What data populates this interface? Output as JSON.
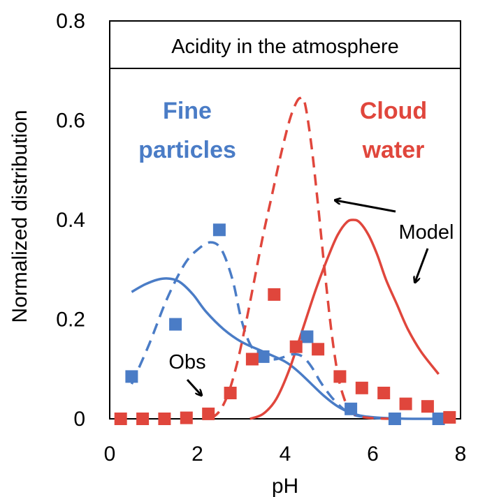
{
  "chart_data": {
    "type": "line",
    "title": "Acidity in the atmosphere",
    "xlabel": "pH",
    "ylabel": "Normalized distribution",
    "xlim": [
      0,
      8
    ],
    "ylim": [
      0,
      0.8
    ],
    "xticks": [
      0,
      2,
      4,
      6,
      8
    ],
    "yticks": [
      0,
      0.2,
      0.4,
      0.6,
      0.8
    ],
    "x_tick_labels": [
      "0",
      "2",
      "4",
      "6",
      "8"
    ],
    "y_tick_labels": [
      "0",
      "0.2",
      "0.4",
      "0.6",
      "0.8"
    ],
    "grid": false,
    "colors": {
      "fine": "#4a7cc6",
      "cloud": "#e0463c",
      "text": "#000000"
    },
    "groups": [
      {
        "label_line1": "Fine",
        "label_line2": "particles",
        "color": "#4a7cc6"
      },
      {
        "label_line1": "Cloud",
        "label_line2": "water",
        "color": "#e0463c"
      }
    ],
    "annotations": {
      "model": "Model",
      "obs": "Obs"
    },
    "series": [
      {
        "group": "fine",
        "kind": "obs-squares",
        "color": "#4a7cc6",
        "x": [
          0.5,
          1.5,
          2.5,
          3.5,
          4.5,
          5.5,
          6.5,
          7.5
        ],
        "y": [
          0.085,
          0.19,
          0.38,
          0.125,
          0.165,
          0.02,
          0.0,
          0.0
        ]
      },
      {
        "group": "fine",
        "kind": "model-dashed",
        "color": "#4a7cc6",
        "x": [
          0.5,
          0.9,
          1.3,
          1.7,
          2.0,
          2.3,
          2.55,
          2.8,
          3.0,
          3.2,
          3.4,
          3.6,
          3.8,
          4.0,
          4.2,
          4.4,
          4.6,
          4.8,
          5.0,
          5.2,
          5.4,
          5.6,
          5.8,
          6.0,
          6.2,
          6.4,
          6.6
        ],
        "y": [
          0.07,
          0.15,
          0.24,
          0.31,
          0.34,
          0.355,
          0.34,
          0.28,
          0.2,
          0.15,
          0.13,
          0.12,
          0.12,
          0.125,
          0.13,
          0.125,
          0.105,
          0.075,
          0.05,
          0.03,
          0.015,
          0.007,
          0.004,
          0.002,
          0.001,
          0.0005,
          0.0
        ]
      },
      {
        "group": "fine",
        "kind": "model-solid",
        "color": "#4a7cc6",
        "x": [
          0.5,
          0.8,
          1.1,
          1.35,
          1.6,
          1.9,
          2.2,
          2.6,
          3.0,
          3.5,
          4.0,
          4.3,
          4.6,
          4.9,
          5.2,
          5.5,
          5.8,
          6.2,
          6.6,
          7.0,
          7.5
        ],
        "y": [
          0.255,
          0.27,
          0.28,
          0.282,
          0.275,
          0.25,
          0.215,
          0.18,
          0.155,
          0.135,
          0.115,
          0.095,
          0.07,
          0.045,
          0.025,
          0.012,
          0.005,
          0.002,
          0.0005,
          0.0,
          0.0
        ]
      },
      {
        "group": "cloud",
        "kind": "obs-squares",
        "color": "#e0463c",
        "x": [
          0.25,
          0.75,
          1.25,
          1.75,
          2.25,
          2.75,
          3.25,
          3.75,
          4.25,
          4.75,
          5.25,
          5.75,
          6.25,
          6.75,
          7.25,
          7.75
        ],
        "y": [
          0.0,
          0.0,
          0.0,
          0.002,
          0.01,
          0.052,
          0.12,
          0.25,
          0.145,
          0.14,
          0.085,
          0.062,
          0.052,
          0.03,
          0.025,
          0.003
        ]
      },
      {
        "group": "cloud",
        "kind": "model-dashed",
        "color": "#e0463c",
        "x": [
          2.3,
          2.5,
          2.7,
          2.9,
          3.1,
          3.3,
          3.5,
          3.7,
          3.9,
          4.1,
          4.25,
          4.35,
          4.45,
          4.6,
          4.75,
          4.9,
          5.05,
          5.2,
          5.35,
          5.5,
          5.7,
          5.9,
          6.2,
          6.6
        ],
        "y": [
          0.0,
          0.015,
          0.05,
          0.11,
          0.19,
          0.28,
          0.37,
          0.45,
          0.53,
          0.6,
          0.635,
          0.645,
          0.635,
          0.55,
          0.43,
          0.3,
          0.18,
          0.09,
          0.04,
          0.015,
          0.005,
          0.002,
          0.0005,
          0.0
        ]
      },
      {
        "group": "cloud",
        "kind": "model-solid",
        "color": "#e0463c",
        "x": [
          3.2,
          3.5,
          3.8,
          4.1,
          4.4,
          4.7,
          5.0,
          5.2,
          5.4,
          5.55,
          5.7,
          5.9,
          6.1,
          6.3,
          6.55,
          6.8,
          7.1,
          7.5
        ],
        "y": [
          0.0,
          0.01,
          0.04,
          0.1,
          0.18,
          0.26,
          0.33,
          0.37,
          0.395,
          0.4,
          0.395,
          0.37,
          0.33,
          0.28,
          0.23,
          0.18,
          0.135,
          0.09
        ]
      }
    ]
  }
}
